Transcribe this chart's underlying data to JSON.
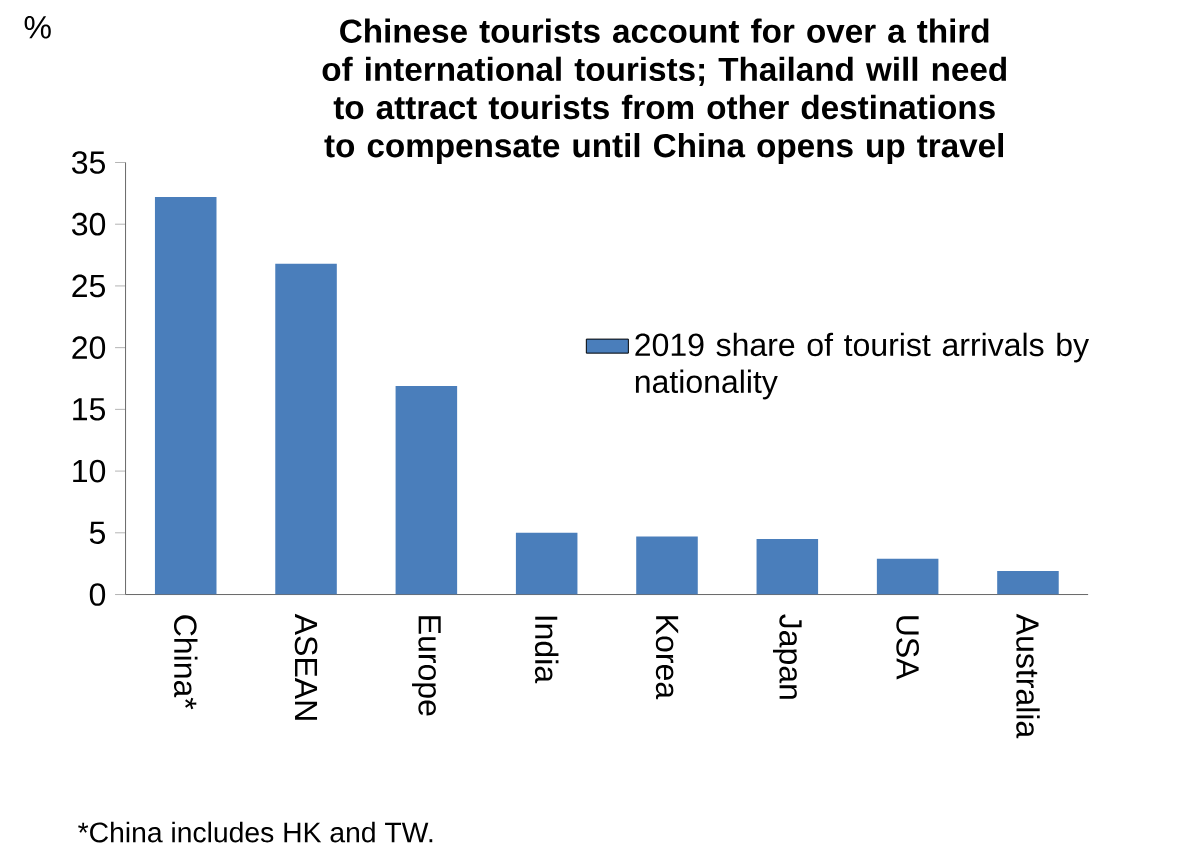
{
  "chart_data": {
    "type": "bar",
    "title": "Chinese tourists account for over a third of international tourists; Thailand will need to attract tourists from other destinations to compensate until China opens up travel",
    "ylabel": "%",
    "categories": [
      "China*",
      "ASEAN",
      "Europe",
      "India",
      "Korea",
      "Japan",
      "USA",
      "Australia"
    ],
    "series": [
      {
        "name": "2019 share of tourist arrivals by nationality",
        "color": "#4a7ebb",
        "values": [
          32.2,
          26.8,
          16.9,
          5.0,
          4.7,
          4.5,
          2.9,
          1.9
        ]
      }
    ],
    "ylim": [
      0,
      35
    ],
    "yticks": [
      0,
      5,
      10,
      15,
      20,
      25,
      30,
      35
    ],
    "legend": "right",
    "annotations": [
      "*China includes HK and TW."
    ]
  }
}
